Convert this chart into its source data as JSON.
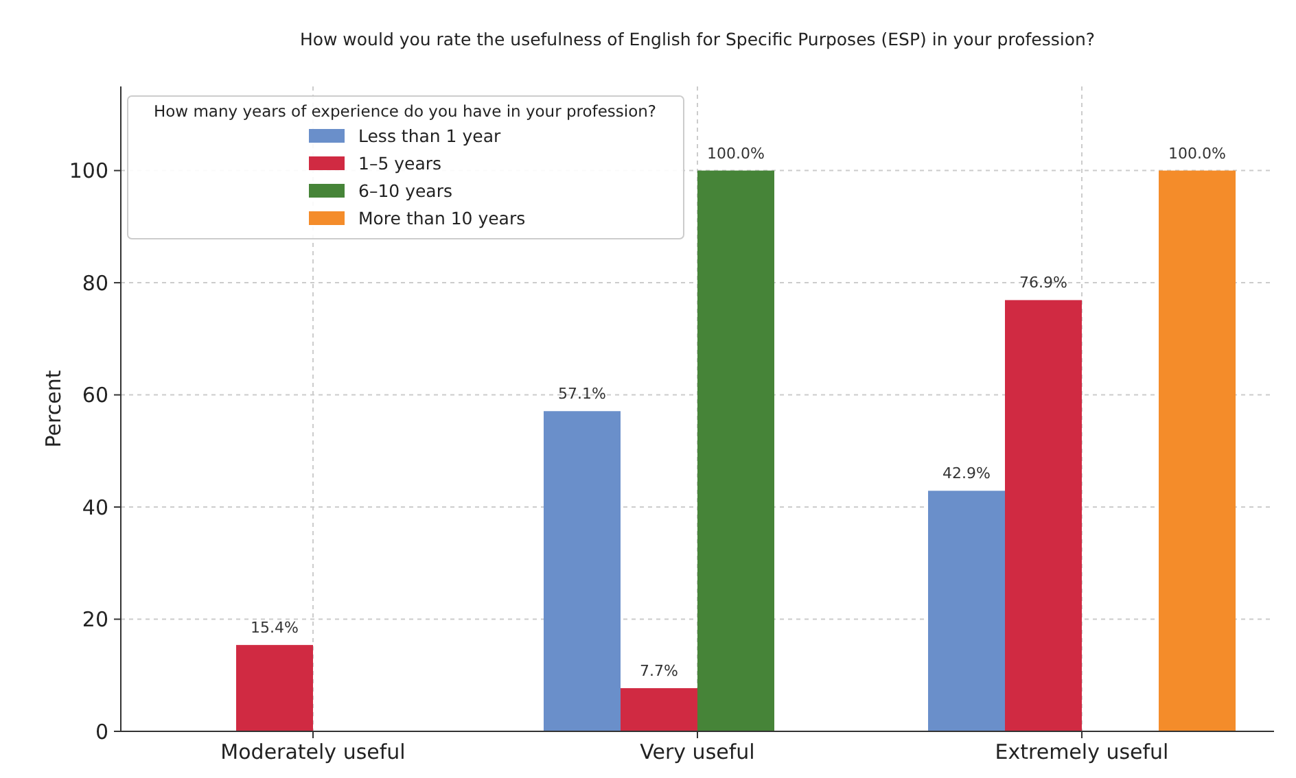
{
  "chart_data": {
    "type": "bar",
    "title": "How would you rate the usefulness of English for Specific Purposes (ESP) in your profession?",
    "ylabel": "Percent",
    "legend_title": "How many years of experience do you have in your profession?",
    "categories": [
      "Moderately useful",
      "Very useful",
      "Extremely useful"
    ],
    "series": [
      {
        "name": "Less than 1 year",
        "color": "#6a8fca",
        "values": [
          null,
          57.1,
          42.9
        ],
        "value_labels": [
          null,
          "57.1%",
          "42.9%"
        ]
      },
      {
        "name": "1–5 years",
        "color": "#d02a42",
        "values": [
          15.4,
          7.7,
          76.9
        ],
        "value_labels": [
          "15.4%",
          "7.7%",
          "76.9%"
        ]
      },
      {
        "name": "6–10 years",
        "color": "#468438",
        "values": [
          null,
          100,
          null
        ],
        "value_labels": [
          null,
          "100.0%",
          null
        ]
      },
      {
        "name": "More than 10 years",
        "color": "#f48c2a",
        "values": [
          null,
          null,
          100
        ],
        "value_labels": [
          null,
          null,
          "100.0%"
        ]
      }
    ],
    "ylim": [
      0,
      115
    ],
    "yticks": [
      0,
      20,
      40,
      60,
      80,
      100
    ],
    "grid": true,
    "legend": "top left"
  }
}
